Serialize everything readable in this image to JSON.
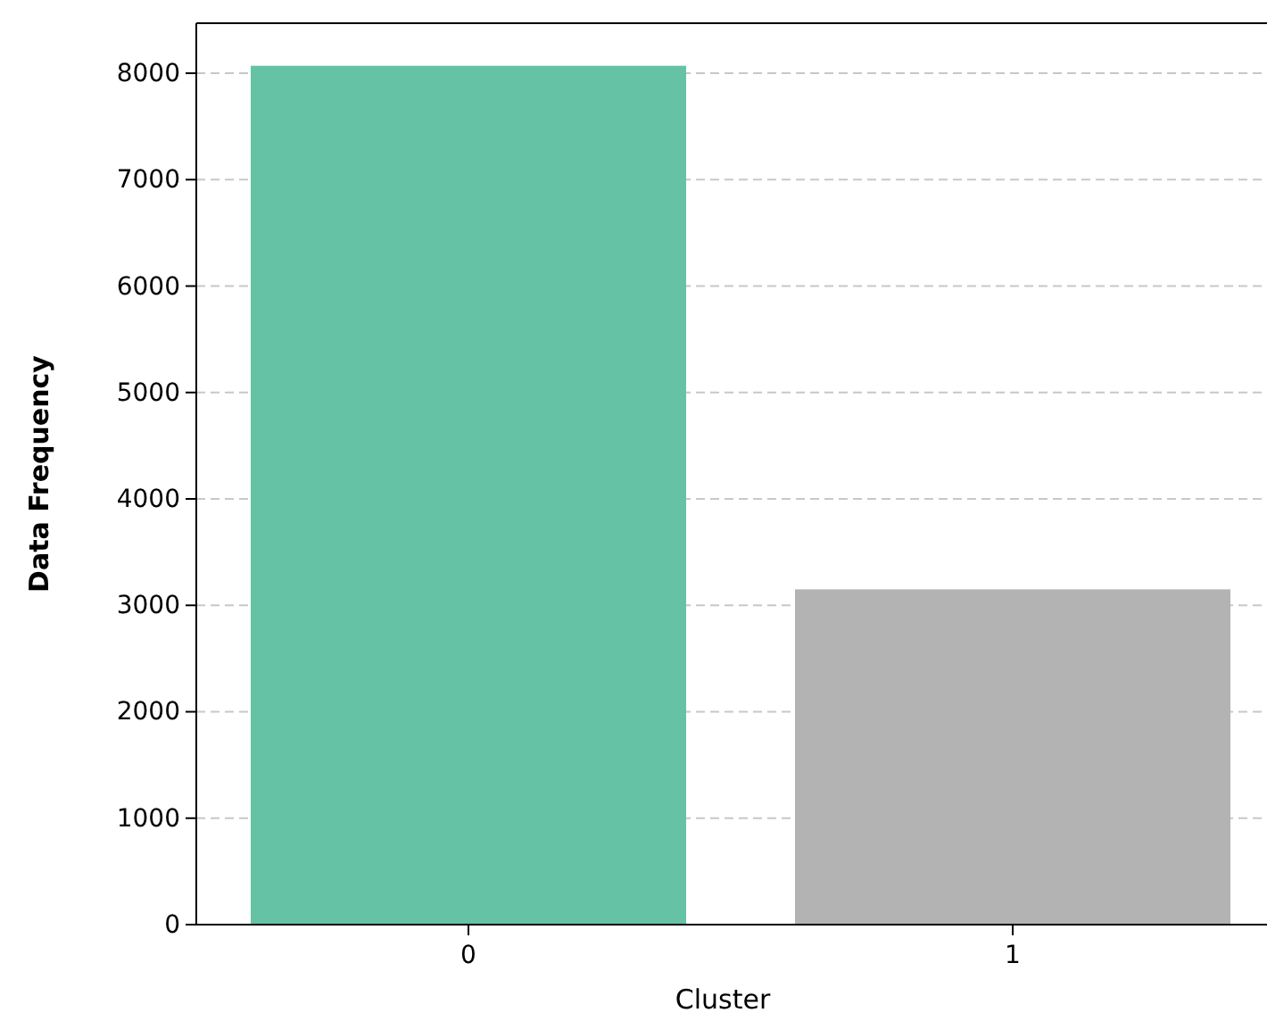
{
  "chart_data": {
    "type": "bar",
    "xlabel": "Cluster",
    "ylabel": "Data Frequency",
    "categories": [
      "0",
      "1"
    ],
    "values": [
      8070,
      3150
    ],
    "colors": [
      "#66c2a5",
      "#b3b3b3"
    ],
    "ylim": [
      0,
      8470
    ],
    "yticks": [
      0,
      1000,
      2000,
      3000,
      4000,
      5000,
      6000,
      7000,
      8000
    ],
    "grid": "y"
  }
}
